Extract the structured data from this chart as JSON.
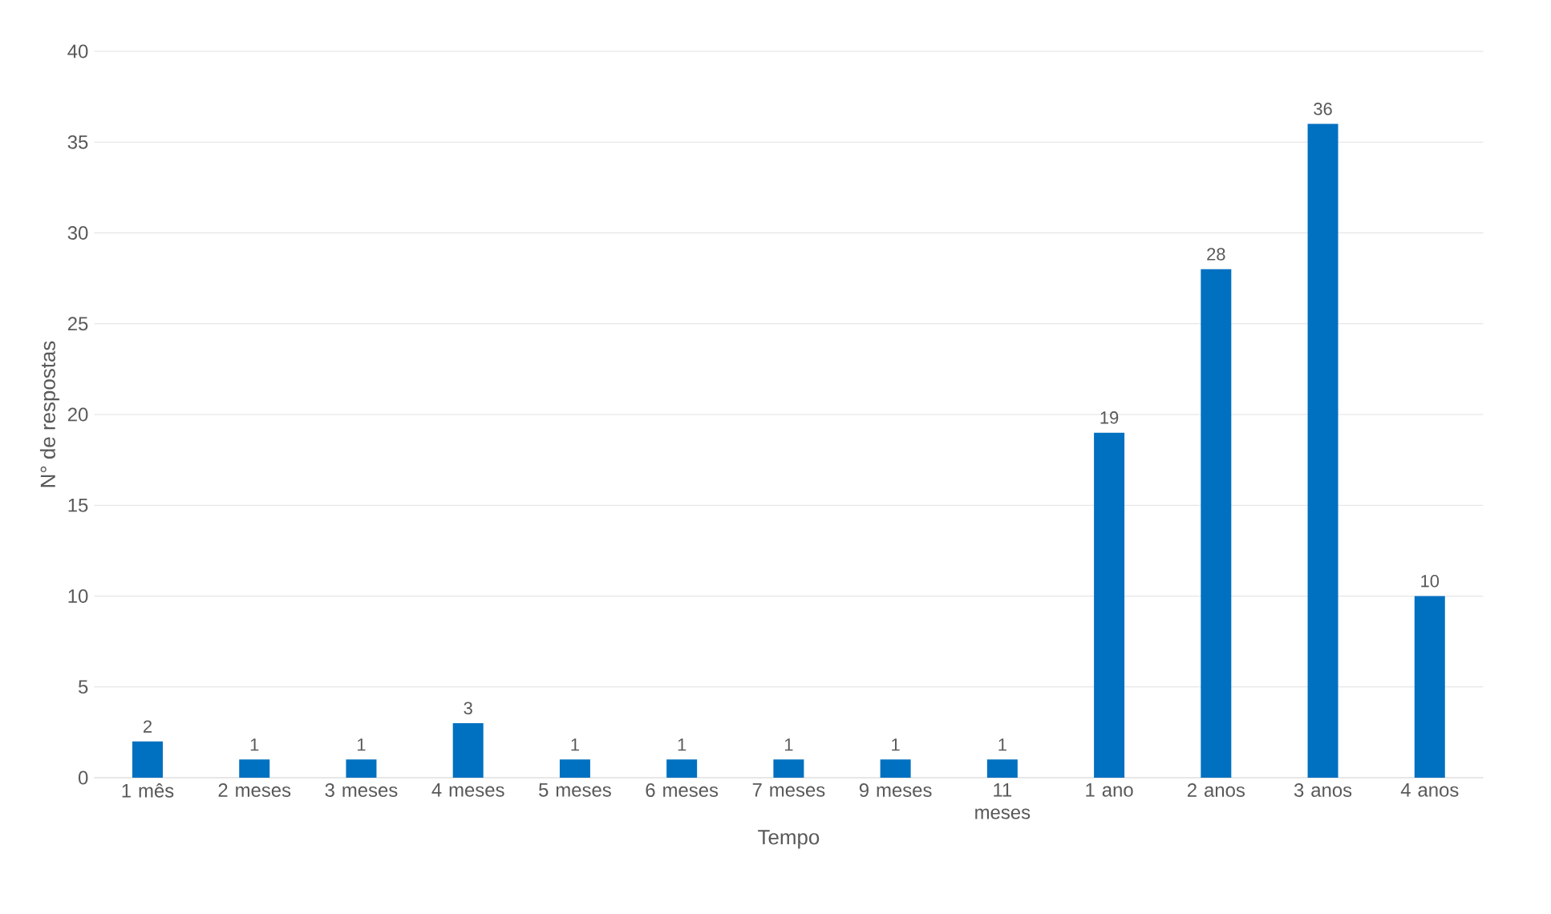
{
  "chart_data": {
    "type": "bar",
    "xlabel": "Tempo",
    "ylabel": "N° de respostas",
    "categories": [
      "1 mês",
      "2 meses",
      "3 meses",
      "4 meses",
      "5 meses",
      "6 meses",
      "7 meses",
      "9 meses",
      "11 meses",
      "1 ano",
      "2 anos",
      "3 anos",
      "4 anos"
    ],
    "values": [
      2,
      1,
      1,
      3,
      1,
      1,
      1,
      1,
      1,
      19,
      28,
      36,
      10
    ],
    "color": "#0070c0",
    "ylim": [
      0,
      40
    ],
    "yticks": [
      0,
      5,
      10,
      15,
      20,
      25,
      30,
      35,
      40
    ],
    "grid": "y",
    "data_labels": true
  }
}
